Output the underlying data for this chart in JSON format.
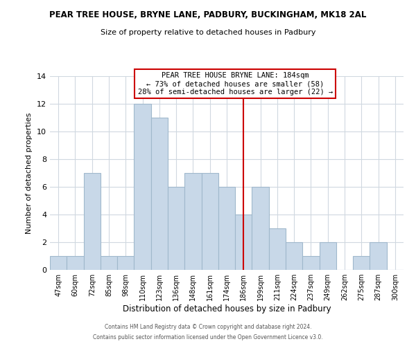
{
  "title": "PEAR TREE HOUSE, BRYNE LANE, PADBURY, BUCKINGHAM, MK18 2AL",
  "subtitle": "Size of property relative to detached houses in Padbury",
  "xlabel": "Distribution of detached houses by size in Padbury",
  "ylabel": "Number of detached properties",
  "bin_labels": [
    "47sqm",
    "60sqm",
    "72sqm",
    "85sqm",
    "98sqm",
    "110sqm",
    "123sqm",
    "136sqm",
    "148sqm",
    "161sqm",
    "174sqm",
    "186sqm",
    "199sqm",
    "211sqm",
    "224sqm",
    "237sqm",
    "249sqm",
    "262sqm",
    "275sqm",
    "287sqm",
    "300sqm"
  ],
  "bar_heights": [
    1,
    1,
    7,
    1,
    1,
    12,
    11,
    6,
    7,
    7,
    6,
    4,
    6,
    3,
    2,
    1,
    2,
    0,
    1,
    2,
    0
  ],
  "bar_color": "#c8d8e8",
  "bar_edgecolor": "#a0b8cc",
  "highlight_index": 11,
  "highlight_line_color": "#cc0000",
  "ylim": [
    0,
    14
  ],
  "yticks": [
    0,
    2,
    4,
    6,
    8,
    10,
    12,
    14
  ],
  "annotation_title": "PEAR TREE HOUSE BRYNE LANE: 184sqm",
  "annotation_line1": "← 73% of detached houses are smaller (58)",
  "annotation_line2": "28% of semi-detached houses are larger (22) →",
  "annotation_box_edgecolor": "#cc0000",
  "footer_line1": "Contains HM Land Registry data © Crown copyright and database right 2024.",
  "footer_line2": "Contains public sector information licensed under the Open Government Licence v3.0.",
  "background_color": "#ffffff",
  "grid_color": "#d0d8e0"
}
